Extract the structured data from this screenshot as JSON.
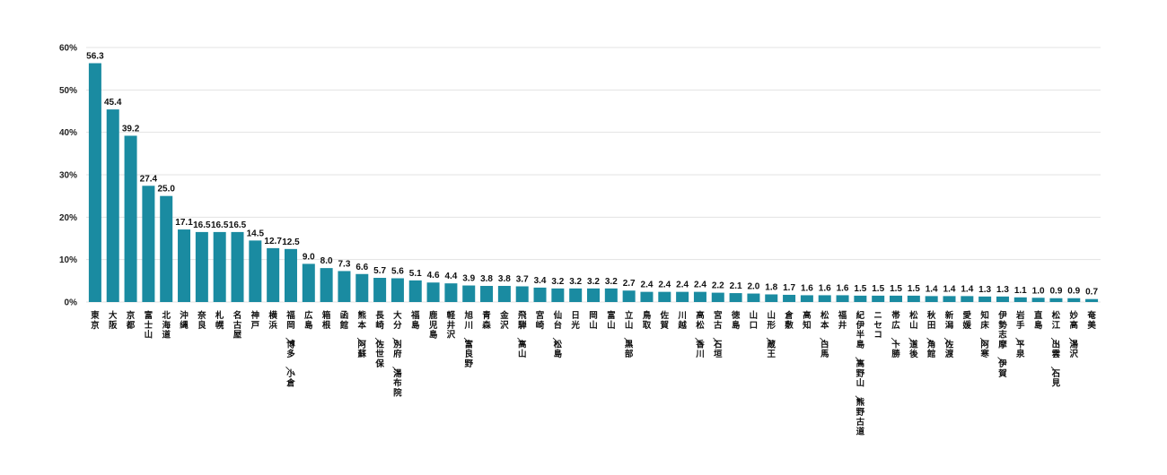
{
  "chart_data": {
    "type": "bar",
    "categories": [
      "東京",
      "大阪",
      "京都",
      "富士山",
      "北海道",
      "沖縄",
      "奈良",
      "札幌",
      "名古屋",
      "神戸",
      "横浜",
      "福岡／博多／小倉",
      "広島",
      "箱根",
      "函館",
      "熊本／阿蘇",
      "長崎／佐世保",
      "大分／別府／湯布院",
      "福島",
      "鹿児島",
      "軽井沢",
      "旭川／富良野",
      "青森",
      "金沢",
      "飛騨／高山",
      "宮崎",
      "仙台／松島",
      "日光",
      "岡山",
      "富山",
      "立山／黒部",
      "鳥取",
      "佐賀",
      "川越",
      "高松／香川",
      "宮古／石垣",
      "徳島",
      "山口",
      "山形／蔵王",
      "倉敷",
      "高知",
      "松本／白馬",
      "福井",
      "紀伊半島／高野山／熊野古道",
      "ニセコ",
      "帯広／十勝",
      "松山／道後",
      "秋田／角館",
      "新潟／佐渡",
      "愛媛",
      "知床／阿寒",
      "伊勢志摩／伊賀",
      "岩手／平泉",
      "直島",
      "松江／出雲／石見",
      "妙高／湯沢",
      "奄美"
    ],
    "values": [
      56.3,
      45.4,
      39.2,
      27.4,
      25.0,
      17.1,
      16.5,
      16.5,
      16.5,
      14.5,
      12.7,
      12.5,
      9.0,
      8.0,
      7.3,
      6.6,
      5.7,
      5.6,
      5.1,
      4.6,
      4.4,
      3.9,
      3.8,
      3.8,
      3.7,
      3.4,
      3.2,
      3.2,
      3.2,
      3.2,
      2.7,
      2.4,
      2.4,
      2.4,
      2.4,
      2.2,
      2.1,
      2.0,
      1.8,
      1.7,
      1.6,
      1.6,
      1.6,
      1.5,
      1.5,
      1.5,
      1.5,
      1.4,
      1.4,
      1.4,
      1.3,
      1.3,
      1.1,
      1.0,
      0.9,
      0.9,
      0.7
    ],
    "value_labels": [
      "56.3",
      "45.4",
      "39.2",
      "27.4",
      "25.0",
      "17.1",
      "16.5",
      "16.5",
      "16.5",
      "14.5",
      "12.7",
      "12.5",
      "9.0",
      "8.0",
      "7.3",
      "6.6",
      "5.7",
      "5.6",
      "5.1",
      "4.6",
      "4.4",
      "3.9",
      "3.8",
      "3.8",
      "3.7",
      "3.4",
      "3.2",
      "3.2",
      "3.2",
      "3.2",
      "2.7",
      "2.4",
      "2.4",
      "2.4",
      "2.4",
      "2.2",
      "2.1",
      "2.0",
      "1.8",
      "1.7",
      "1.6",
      "1.6",
      "1.6",
      "1.5",
      "1.5",
      "1.5",
      "1.5",
      "1.4",
      "1.4",
      "1.4",
      "1.3",
      "1.3",
      "1.1",
      "1.0",
      "0.9",
      "0.9",
      "0.7"
    ],
    "yticks": [
      "0%",
      "10%",
      "20%",
      "30%",
      "40%",
      "50%",
      "60%"
    ],
    "ylim": [
      0,
      60
    ],
    "grid": true,
    "bar_color": "#1a8ba1",
    "title": "",
    "xlabel": "",
    "ylabel": ""
  }
}
